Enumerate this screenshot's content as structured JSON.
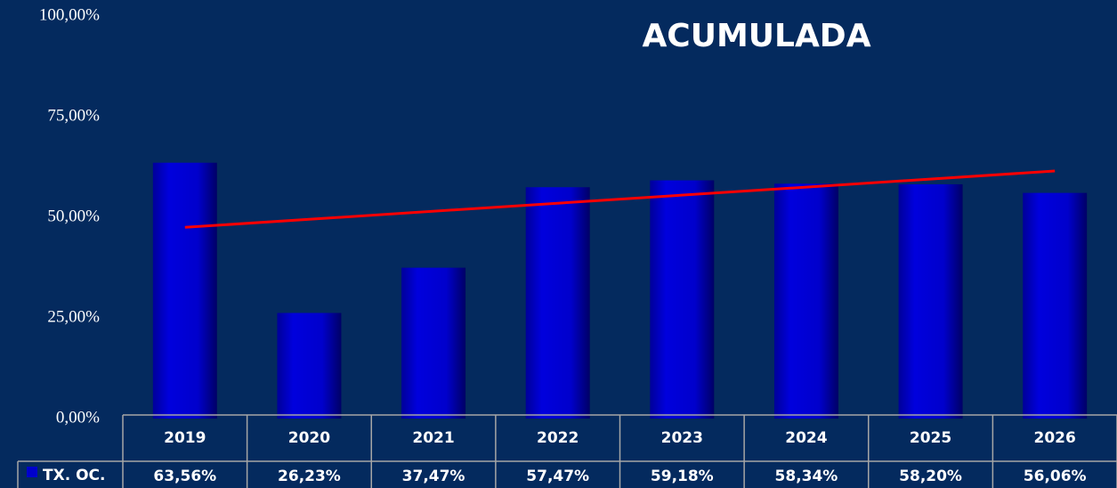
{
  "chart_data": {
    "type": "bar",
    "title": "ACUMULADA",
    "categories": [
      "2019",
      "2020",
      "2021",
      "2022",
      "2023",
      "2024",
      "2025",
      "2026"
    ],
    "series": [
      {
        "name": "TX. OC.",
        "color": "#0000cc",
        "values": [
          63.56,
          26.23,
          37.47,
          57.47,
          59.18,
          58.34,
          58.2,
          56.06
        ],
        "value_labels": [
          "63,56%",
          "26,23%",
          "37,47%",
          "57,47%",
          "59,18%",
          "58,34%",
          "58,20%",
          "56,06%"
        ]
      }
    ],
    "trend_line": {
      "color": "#ff0000",
      "values": [
        47.5,
        61.5
      ]
    },
    "ylim": [
      0,
      100
    ],
    "yticks": [
      {
        "value": 0,
        "label": "0,00%"
      },
      {
        "value": 25,
        "label": "25,00%"
      },
      {
        "value": 50,
        "label": "50,00%"
      },
      {
        "value": 75,
        "label": "75,00%"
      },
      {
        "value": 100,
        "label": "100,00%"
      }
    ]
  }
}
